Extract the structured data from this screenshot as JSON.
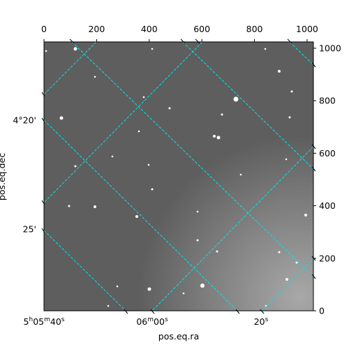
{
  "chart_data": {
    "type": "image",
    "xlabel": "pos.eq.ra",
    "ylabel": "pos.eq.dec",
    "xlim": [
      0,
      1024
    ],
    "xticks": [
      0,
      200,
      400,
      600,
      800,
      1000
    ],
    "ylim": [
      0,
      1024
    ],
    "yticks": [
      0,
      200,
      400,
      600,
      800,
      1000
    ],
    "ra_ticks": [
      [
        {
          "text": "5"
        },
        {
          "text": "h",
          "sup": true
        },
        {
          "text": "05"
        },
        {
          "text": "m",
          "sup": true
        },
        {
          "text": "40"
        },
        {
          "text": "s",
          "sup": true
        }
      ],
      [
        {
          "text": "06"
        },
        {
          "text": "m",
          "sup": true
        },
        {
          "text": "00"
        },
        {
          "text": "s",
          "sup": true
        }
      ],
      [
        {
          "text": "20"
        },
        {
          "text": "s",
          "sup": true
        }
      ]
    ],
    "dec_ticks": [
      "4°20'",
      "25'"
    ],
    "grid_color": "#00e5e5"
  }
}
